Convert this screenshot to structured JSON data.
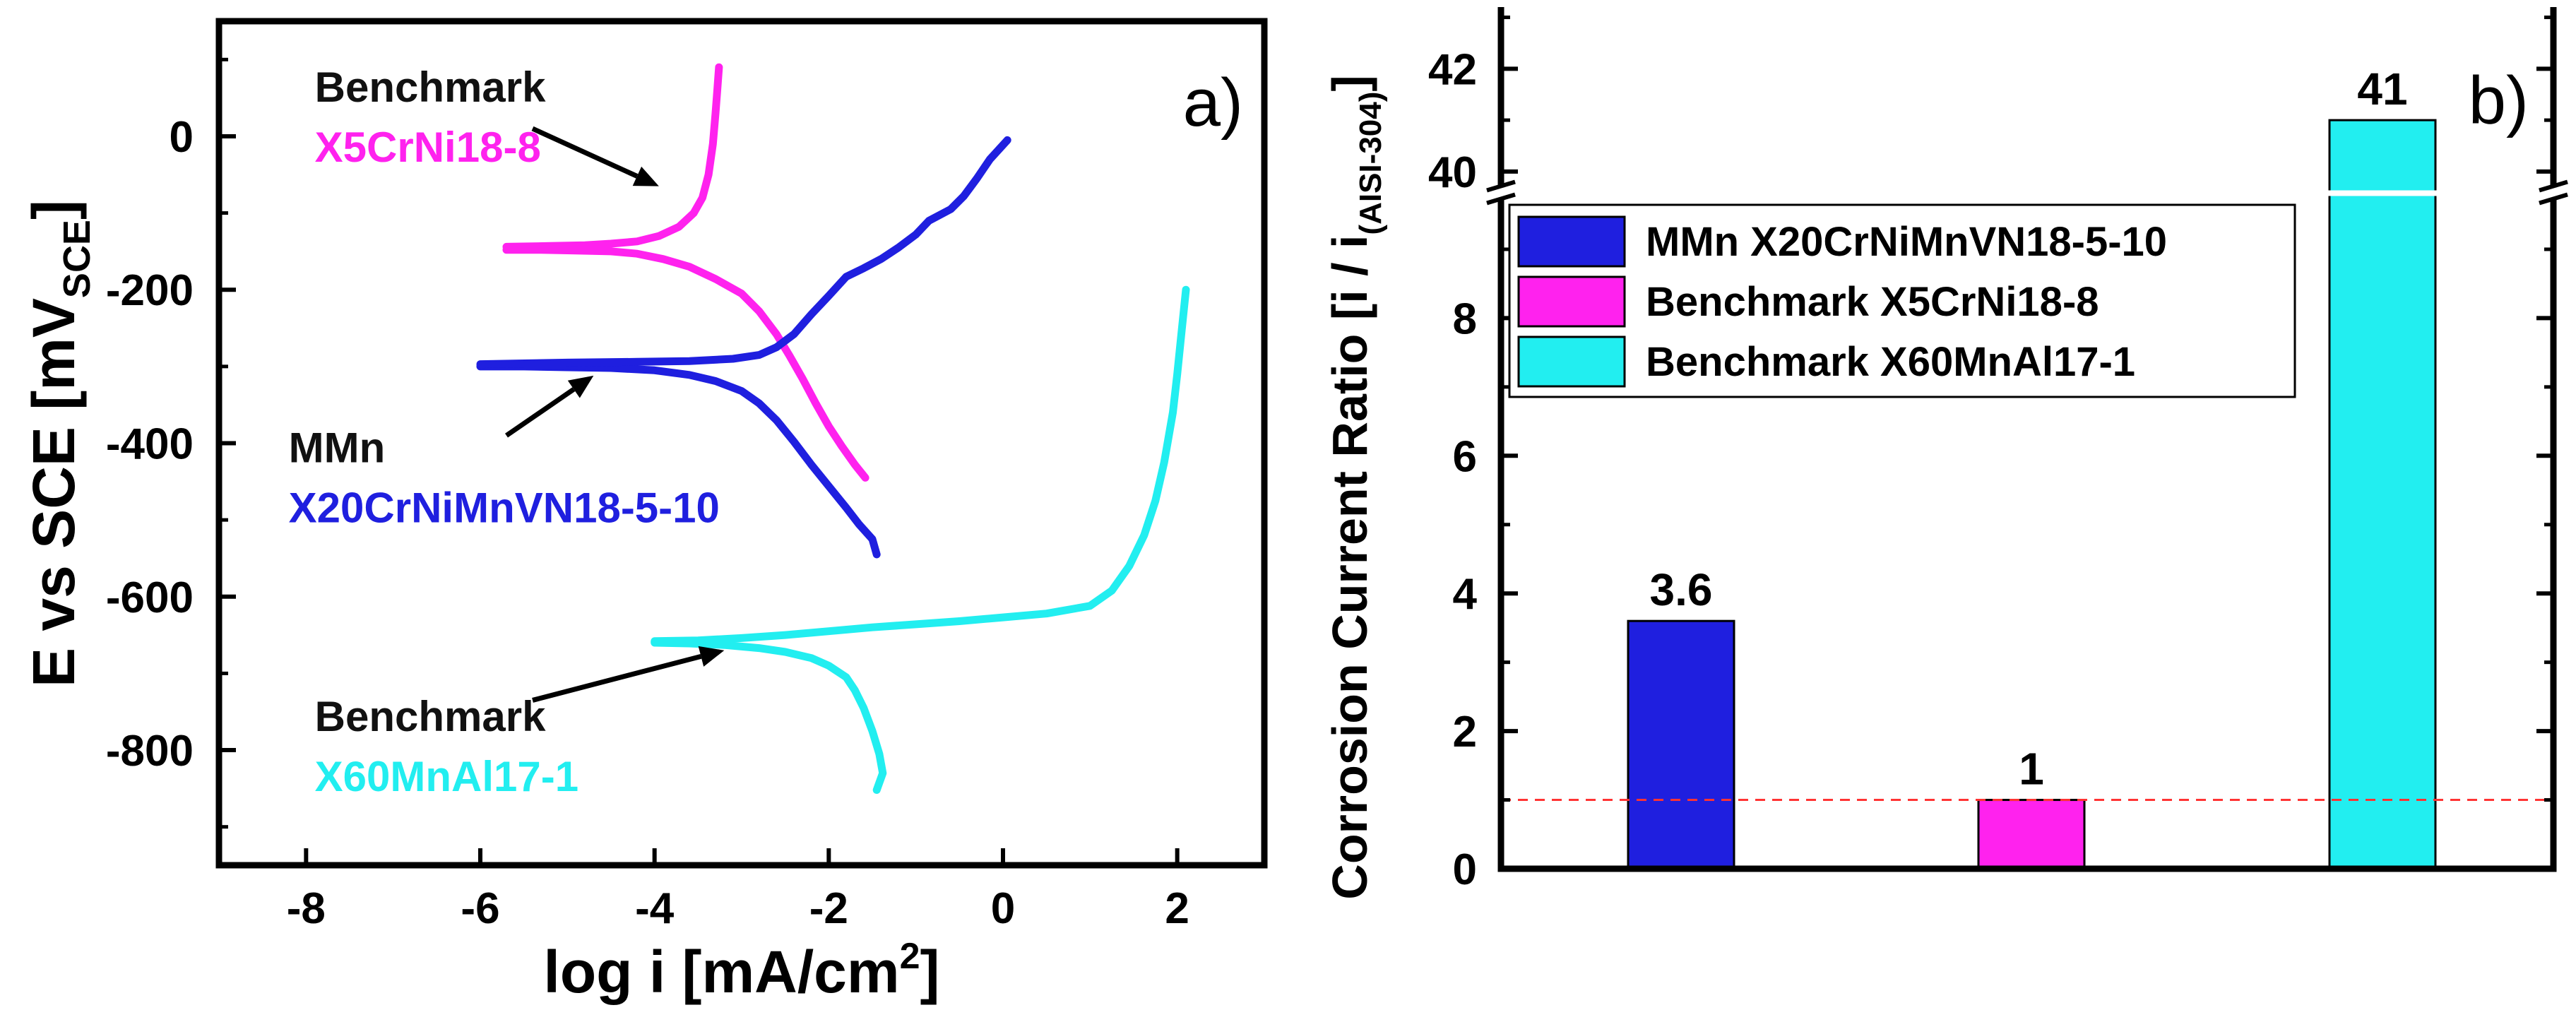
{
  "chart_data": [
    {
      "type": "line",
      "panel_label": "a)",
      "xlabel": "log i [mA/cm",
      "xlabel_sup": "2",
      "xlabel_end": "]",
      "ylabel": "E vs SCE [mV",
      "ylabel_sub": "SCE",
      "ylabel_end": "]",
      "xlim": [
        -9,
        3
      ],
      "ylim": [
        -950,
        150
      ],
      "xticks": [
        -8,
        -6,
        -4,
        -2,
        0,
        2
      ],
      "yticks": [
        0,
        -200,
        -400,
        -600,
        -800
      ],
      "grid": false,
      "series": [
        {
          "name": "Benchmark X5CrNi18-8",
          "color": "#ff22ee",
          "cathodic": [
            [
              -5.7,
              -148
            ],
            [
              -5.3,
              -148
            ],
            [
              -4.9,
              -149
            ],
            [
              -4.5,
              -150
            ],
            [
              -4.2,
              -153
            ],
            [
              -3.9,
              -160
            ],
            [
              -3.6,
              -170
            ],
            [
              -3.3,
              -186
            ],
            [
              -3.0,
              -205
            ],
            [
              -2.8,
              -228
            ],
            [
              -2.6,
              -258
            ],
            [
              -2.45,
              -286
            ],
            [
              -2.3,
              -316
            ],
            [
              -2.15,
              -348
            ],
            [
              -2.0,
              -378
            ],
            [
              -1.85,
              -404
            ],
            [
              -1.7,
              -428
            ],
            [
              -1.58,
              -445
            ]
          ],
          "anodic": [
            [
              -5.7,
              -144
            ],
            [
              -5.2,
              -143
            ],
            [
              -4.8,
              -142
            ],
            [
              -4.5,
              -140
            ],
            [
              -4.2,
              -137
            ],
            [
              -3.95,
              -130
            ],
            [
              -3.72,
              -118
            ],
            [
              -3.55,
              -100
            ],
            [
              -3.45,
              -80
            ],
            [
              -3.38,
              -50
            ],
            [
              -3.33,
              -10
            ],
            [
              -3.3,
              30
            ],
            [
              -3.28,
              60
            ],
            [
              -3.26,
              90
            ]
          ]
        },
        {
          "name": "MMn X20CrNiMnVN18-5-10",
          "color": "#1f1fdf",
          "cathodic": [
            [
              -6.0,
              -300
            ],
            [
              -5.5,
              -300
            ],
            [
              -5.0,
              -301
            ],
            [
              -4.5,
              -302
            ],
            [
              -4.0,
              -305
            ],
            [
              -3.6,
              -311
            ],
            [
              -3.3,
              -319
            ],
            [
              -3.0,
              -332
            ],
            [
              -2.8,
              -348
            ],
            [
              -2.6,
              -370
            ],
            [
              -2.4,
              -398
            ],
            [
              -2.2,
              -428
            ],
            [
              -2.0,
              -456
            ],
            [
              -1.8,
              -484
            ],
            [
              -1.65,
              -506
            ],
            [
              -1.5,
              -525
            ],
            [
              -1.45,
              -545
            ]
          ],
          "anodic": [
            [
              -6.0,
              -297
            ],
            [
              -5.0,
              -295
            ],
            [
              -4.2,
              -294
            ],
            [
              -3.6,
              -293
            ],
            [
              -3.1,
              -290
            ],
            [
              -2.8,
              -285
            ],
            [
              -2.6,
              -275
            ],
            [
              -2.4,
              -258
            ],
            [
              -2.2,
              -232
            ],
            [
              -2.0,
              -208
            ],
            [
              -1.8,
              -183
            ],
            [
              -1.6,
              -172
            ],
            [
              -1.4,
              -160
            ],
            [
              -1.2,
              -145
            ],
            [
              -1.0,
              -128
            ],
            [
              -0.85,
              -110
            ],
            [
              -0.6,
              -95
            ],
            [
              -0.45,
              -78
            ],
            [
              -0.3,
              -55
            ],
            [
              -0.15,
              -30
            ],
            [
              0.05,
              -5
            ]
          ]
        },
        {
          "name": "Benchmark X60MnAl17-1",
          "color": "#22eef0",
          "cathodic": [
            [
              -4.0,
              -660
            ],
            [
              -3.6,
              -661
            ],
            [
              -3.2,
              -663
            ],
            [
              -2.8,
              -667
            ],
            [
              -2.5,
              -672
            ],
            [
              -2.2,
              -680
            ],
            [
              -2.0,
              -690
            ],
            [
              -1.8,
              -705
            ],
            [
              -1.7,
              -722
            ],
            [
              -1.6,
              -745
            ],
            [
              -1.5,
              -775
            ],
            [
              -1.42,
              -805
            ],
            [
              -1.38,
              -830
            ],
            [
              -1.45,
              -852
            ]
          ],
          "anodic": [
            [
              -4.0,
              -658
            ],
            [
              -3.5,
              -657
            ],
            [
              -3.0,
              -654
            ],
            [
              -2.5,
              -650
            ],
            [
              -2.0,
              -645
            ],
            [
              -1.5,
              -640
            ],
            [
              -1.0,
              -636
            ],
            [
              -0.5,
              -632
            ],
            [
              0.0,
              -627
            ],
            [
              0.5,
              -622
            ],
            [
              1.0,
              -612
            ],
            [
              1.25,
              -592
            ],
            [
              1.45,
              -560
            ],
            [
              1.62,
              -520
            ],
            [
              1.75,
              -475
            ],
            [
              1.85,
              -425
            ],
            [
              1.95,
              -360
            ],
            [
              2.0,
              -310
            ],
            [
              2.05,
              -255
            ],
            [
              2.1,
              -200
            ]
          ]
        }
      ],
      "annotations": [
        {
          "lines": [
            "Benchmark",
            "X5CrNi18-8"
          ],
          "colors": [
            "#111111",
            "#ff22ee"
          ],
          "pos": [
            -7.9,
            45
          ],
          "arrow_from": [
            -5.4,
            10
          ],
          "arrow_to": [
            -3.95,
            -65
          ]
        },
        {
          "lines": [
            "MMn",
            "X20CrNiMnVN18-5-10"
          ],
          "colors": [
            "#111111",
            "#1f1fdf"
          ],
          "pos": [
            -8.2,
            -425
          ],
          "arrow_from": [
            -5.7,
            -390
          ],
          "arrow_to": [
            -4.7,
            -312
          ]
        },
        {
          "lines": [
            "Benchmark",
            "X60MnAl17-1"
          ],
          "colors": [
            "#111111",
            "#22eef0"
          ],
          "pos": [
            -7.9,
            -775
          ],
          "arrow_from": [
            -5.4,
            -735
          ],
          "arrow_to": [
            -3.2,
            -670
          ]
        }
      ]
    },
    {
      "type": "bar",
      "panel_label": "b)",
      "ylabel": "Corrosion Current Ratio  [i / i",
      "ylabel_sub": "(AISI-304)",
      "ylabel_end": "]",
      "categories": [
        "MMn X20CrNiMnVN18-5-10",
        "Benchmark X5CrNi18-8",
        "Benchmark X60MnAl17-1"
      ],
      "values": [
        3.6,
        1,
        41
      ],
      "value_labels": [
        "3.6",
        "1",
        "41"
      ],
      "colors": [
        "#1f1fdf",
        "#ff22ee",
        "#22eef0"
      ],
      "ylim_lower": [
        0,
        9.8
      ],
      "ylim_upper": [
        39.6,
        43.2
      ],
      "yticks_lower": [
        0,
        2,
        4,
        6,
        8
      ],
      "yticks_upper": [
        40,
        42
      ],
      "axis_break": true,
      "reference_line": {
        "y": 1,
        "color": "#ff3333",
        "style": "dashed"
      },
      "legend": {
        "position": "top-left",
        "entries": [
          {
            "label": "MMn X20CrNiMnVN18-5-10",
            "color": "#1f1fdf"
          },
          {
            "label": "Benchmark X5CrNi18-8",
            "color": "#ff22ee"
          },
          {
            "label": "Benchmark X60MnAl17-1",
            "color": "#22eef0"
          }
        ]
      }
    }
  ]
}
